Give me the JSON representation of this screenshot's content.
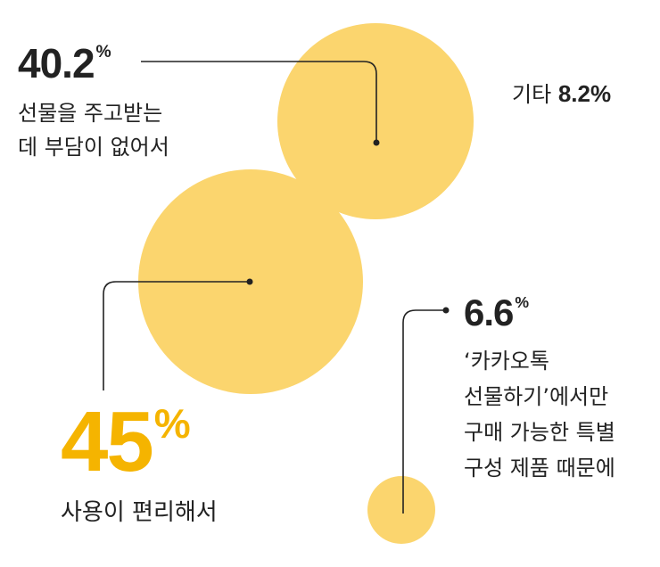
{
  "chart_data": {
    "type": "bubble",
    "colors": {
      "bubble": "#fbd56e",
      "highlight": "#f5b400",
      "line": "#222222"
    },
    "items": [
      {
        "id": "convenient",
        "value": 45,
        "value_label": "45",
        "unit": "%",
        "lines": [
          "사용이 편리해서"
        ],
        "highlight": true
      },
      {
        "id": "burden",
        "value": 40.2,
        "value_label": "40.2",
        "unit": "%",
        "lines": [
          "선물을 주고받는",
          "데 부담이 없어서"
        ],
        "highlight": false
      },
      {
        "id": "exclusive",
        "value": 6.6,
        "value_label": "6.6",
        "unit": "%",
        "lines": [
          "‘카카오톡",
          "선물하기’에서만",
          "구매 가능한 특별",
          "구성 제품 때문에"
        ],
        "highlight": false
      },
      {
        "id": "other",
        "value": 8.2,
        "value_label": "8.2%",
        "prefix": "기타",
        "highlight": false
      }
    ]
  }
}
